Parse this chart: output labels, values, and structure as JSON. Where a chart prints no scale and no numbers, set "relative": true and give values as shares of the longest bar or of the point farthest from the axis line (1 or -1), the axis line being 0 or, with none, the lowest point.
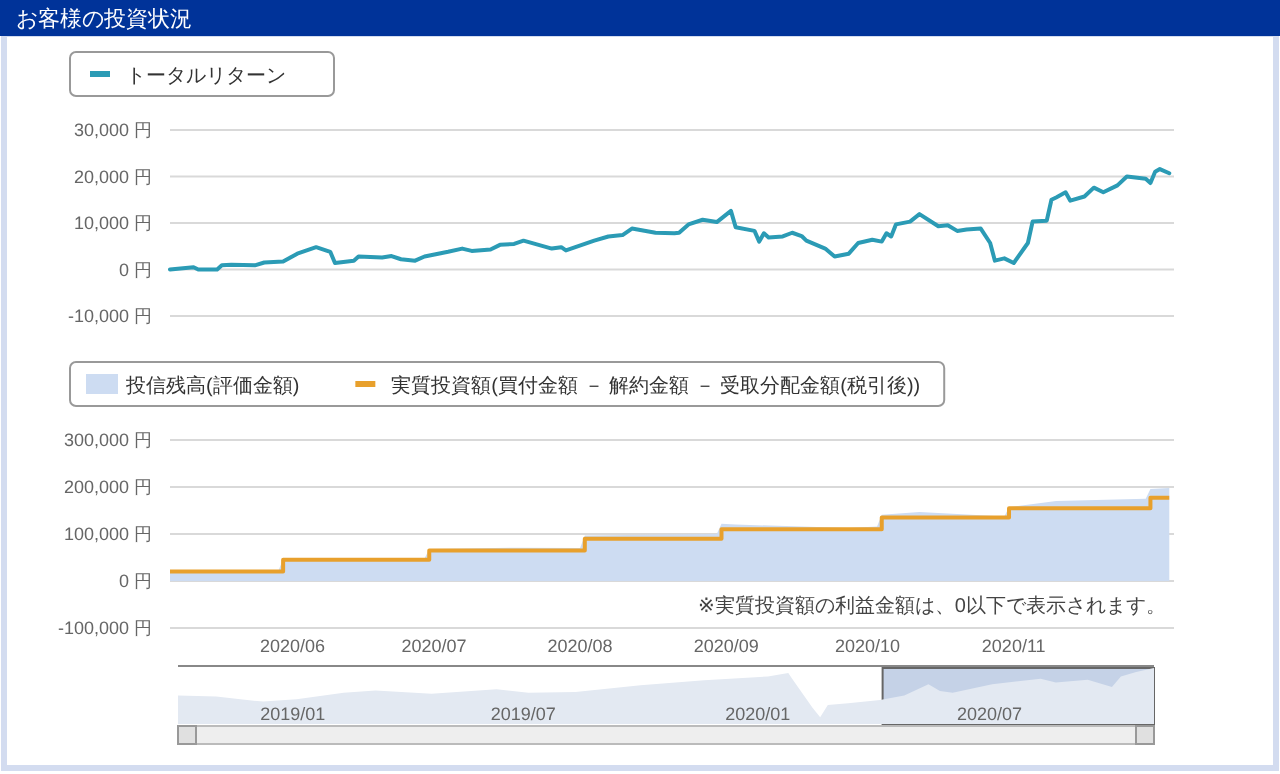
{
  "chart_data": [
    {
      "type": "line",
      "title": "お客様の投資状況",
      "xlim": [
        "2020-05-06",
        "2020-12-05"
      ],
      "ylim": [
        -10000,
        30000
      ],
      "yticks": [
        {
          "value": 30000,
          "label": "30,000 円"
        },
        {
          "value": 20000,
          "label": "20,000 円"
        },
        {
          "value": 10000,
          "label": "10,000 円"
        },
        {
          "value": 0,
          "label": "0 円"
        },
        {
          "value": -10000,
          "label": "-10,000 円"
        }
      ],
      "tick_labels": "y",
      "grid": "y",
      "legend": "top left",
      "series": [
        {
          "name": "トータルリターン",
          "color": "#2b9bb5",
          "x": [
            "2020-05-06",
            "2020-05-11",
            "2020-05-12",
            "2020-05-16",
            "2020-05-17",
            "2020-05-19",
            "2020-05-24",
            "2020-05-26",
            "2020-05-30",
            "2020-06-02",
            "2020-06-06",
            "2020-06-09",
            "2020-06-10",
            "2020-06-14",
            "2020-06-15",
            "2020-06-20",
            "2020-06-22",
            "2020-06-24",
            "2020-06-27",
            "2020-06-29",
            "2020-07-04",
            "2020-07-07",
            "2020-07-09",
            "2020-07-13",
            "2020-07-15",
            "2020-07-18",
            "2020-07-20",
            "2020-07-26",
            "2020-07-28",
            "2020-07-29",
            "2020-08-04",
            "2020-08-07",
            "2020-08-10",
            "2020-08-12",
            "2020-08-17",
            "2020-08-21",
            "2020-08-22",
            "2020-08-24",
            "2020-08-27",
            "2020-08-30",
            "2020-09-02",
            "2020-09-03",
            "2020-09-07",
            "2020-09-08",
            "2020-09-09",
            "2020-09-10",
            "2020-09-13",
            "2020-09-15",
            "2020-09-17",
            "2020-09-18",
            "2020-09-22",
            "2020-09-24",
            "2020-09-27",
            "2020-09-29",
            "2020-10-02",
            "2020-10-04",
            "2020-10-05",
            "2020-10-06",
            "2020-10-07",
            "2020-10-10",
            "2020-10-12",
            "2020-10-16",
            "2020-10-18",
            "2020-10-20",
            "2020-10-22",
            "2020-10-25",
            "2020-10-27",
            "2020-10-28",
            "2020-10-30",
            "2020-11-01",
            "2020-11-04",
            "2020-11-05",
            "2020-11-08",
            "2020-11-09",
            "2020-11-10",
            "2020-11-12",
            "2020-11-13",
            "2020-11-16",
            "2020-11-18",
            "2020-11-20",
            "2020-11-23",
            "2020-11-25",
            "2020-11-29",
            "2020-11-30",
            "2020-12-01",
            "2020-12-02",
            "2020-12-04"
          ],
          "values": [
            0,
            500,
            0,
            0,
            900,
            1000,
            900,
            1500,
            1700,
            3400,
            4800,
            3800,
            1400,
            1900,
            2800,
            2600,
            2900,
            2200,
            1900,
            2800,
            3800,
            4500,
            4000,
            4300,
            5300,
            5500,
            6200,
            4500,
            4800,
            4100,
            6200,
            7100,
            7400,
            8800,
            7900,
            7800,
            7900,
            9700,
            10700,
            10200,
            12600,
            9100,
            8300,
            6000,
            7800,
            6900,
            7100,
            7900,
            7200,
            6200,
            4500,
            2800,
            3400,
            5700,
            6400,
            6000,
            7800,
            7100,
            9700,
            10300,
            11900,
            9300,
            9500,
            8300,
            8600,
            8800,
            5700,
            1900,
            2400,
            1400,
            5700,
            10300,
            10500,
            15000,
            15500,
            16600,
            14800,
            15700,
            17600,
            16600,
            18100,
            20000,
            19500,
            18600,
            21000,
            21600,
            20700
          ]
        }
      ]
    },
    {
      "type": "area",
      "xlim": [
        "2020-05-06",
        "2020-12-05"
      ],
      "ylim": [
        -100000,
        300000
      ],
      "yticks": [
        {
          "value": 300000,
          "label": "300,000 円"
        },
        {
          "value": 200000,
          "label": "200,000 円"
        },
        {
          "value": 100000,
          "label": "100,000 円"
        },
        {
          "value": 0,
          "label": "0 円"
        },
        {
          "value": -100000,
          "label": "-100,000 円"
        }
      ],
      "xticks": [
        {
          "value": "2020-06-01",
          "label": "2020/06"
        },
        {
          "value": "2020-07-01",
          "label": "2020/07"
        },
        {
          "value": "2020-08-01",
          "label": "2020/08"
        },
        {
          "value": "2020-09-01",
          "label": "2020/09"
        },
        {
          "value": "2020-10-01",
          "label": "2020/10"
        },
        {
          "value": "2020-11-01",
          "label": "2020/11"
        }
      ],
      "grid": "y",
      "legend": "top left",
      "annotations": [
        "※実質投資額の利益金額は、0以下で表示されます。"
      ],
      "series": [
        {
          "name": "投信残高(評価金額)",
          "type": "area",
          "color": "#cddcf2",
          "x": [
            "2020-05-06",
            "2020-05-29",
            "2020-05-30",
            "2020-06-09",
            "2020-06-29",
            "2020-06-30",
            "2020-07-20",
            "2020-08-01",
            "2020-08-02",
            "2020-08-30",
            "2020-08-31",
            "2020-09-03",
            "2020-09-27",
            "2020-10-03",
            "2020-10-04",
            "2020-10-12",
            "2020-10-30",
            "2020-10-31",
            "2020-11-10",
            "2020-11-29",
            "2020-11-30",
            "2020-12-04"
          ],
          "values": [
            20000,
            22000,
            47000,
            49000,
            48000,
            68000,
            71000,
            70000,
            97000,
            100000,
            122000,
            120000,
            113000,
            116000,
            141000,
            147000,
            137000,
            157000,
            170000,
            175000,
            196000,
            198000
          ]
        },
        {
          "name": "実質投資額(買付金額 － 解約金額 － 受取分配金額(税引後))",
          "type": "step",
          "color": "#e8a02c",
          "x": [
            "2020-05-06",
            "2020-05-30",
            "2020-06-30",
            "2020-08-02",
            "2020-08-31",
            "2020-10-04",
            "2020-10-31",
            "2020-11-30",
            "2020-12-04"
          ],
          "values": [
            20000,
            45000,
            65000,
            90000,
            110000,
            135000,
            155000,
            177000,
            177000
          ]
        }
      ]
    },
    {
      "type": "area",
      "relative": true,
      "tick_labels": "x",
      "xlim": [
        "2018-10-03",
        "2020-11-07"
      ],
      "xticks": [
        {
          "value": "2019-01-01",
          "label": "2019/01"
        },
        {
          "value": "2019-07-01",
          "label": "2019/07"
        },
        {
          "value": "2020-01-01",
          "label": "2020/01"
        },
        {
          "value": "2020-07-01",
          "label": "2020/07"
        }
      ],
      "bands": [
        {
          "axis": "x",
          "from": "2020-04-08",
          "to": "2020-11-07",
          "color": "#7f9cc9"
        }
      ],
      "color": "#e3e9f2",
      "x": [
        "2018-10-03",
        "2018-11-02",
        "2018-11-21",
        "2018-12-09",
        "2019-01-04",
        "2019-02-10",
        "2019-03-07",
        "2019-04-20",
        "2019-06-10",
        "2019-07-05",
        "2019-08-11",
        "2019-10-01",
        "2019-11-20",
        "2020-01-09",
        "2020-01-25",
        "2020-01-28",
        "2020-02-13",
        "2020-02-19",
        "2020-02-25",
        "2020-03-12",
        "2020-04-06",
        "2020-04-25",
        "2020-05-14",
        "2020-05-23",
        "2020-06-02",
        "2020-07-03",
        "2020-08-10",
        "2020-08-22",
        "2020-09-16",
        "2020-10-05",
        "2020-10-12",
        "2020-10-24",
        "2020-11-07"
      ],
      "values": [
        0.51,
        0.49,
        0.44,
        0.4,
        0.44,
        0.56,
        0.6,
        0.54,
        0.62,
        0.56,
        0.57,
        0.69,
        0.78,
        0.85,
        0.91,
        0.81,
        0.29,
        0.12,
        0.34,
        0.37,
        0.43,
        0.51,
        0.71,
        0.59,
        0.56,
        0.71,
        0.81,
        0.74,
        0.79,
        0.66,
        0.85,
        0.93,
        1
      ]
    }
  ]
}
